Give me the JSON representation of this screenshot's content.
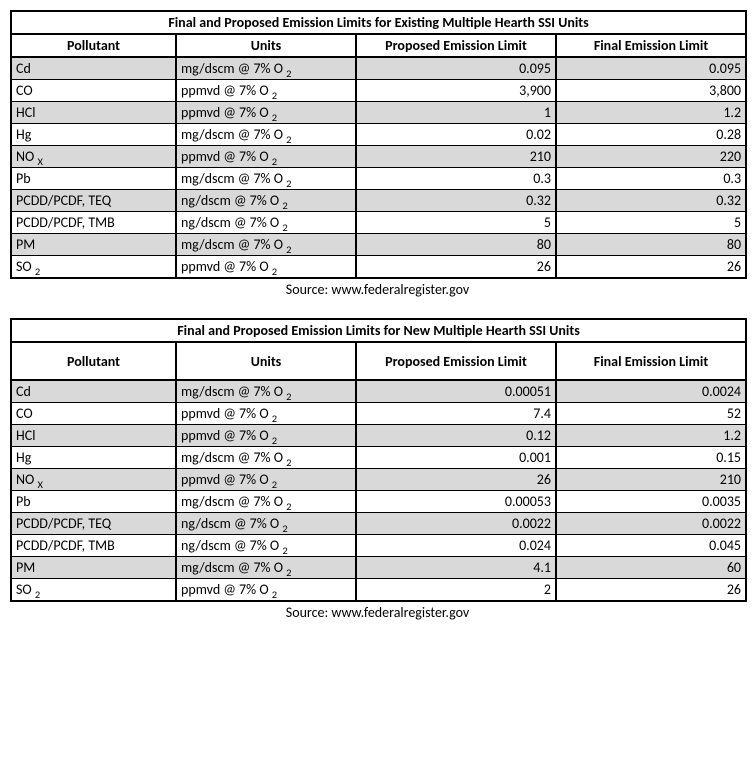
{
  "tables": [
    {
      "title": "Final and Proposed Emission Limits for Existing Multiple Hearth SSI Units",
      "headers": [
        "Pollutant",
        "Units",
        "Proposed Emission Limit",
        "Final Emission Limit"
      ],
      "rows": [
        {
          "pollutant": "Cd",
          "pollutant_sub": "",
          "units_prefix": "mg/dscm @ 7% O",
          "units_sub": "2",
          "proposed": "0.095",
          "final": "0.095",
          "shaded": true
        },
        {
          "pollutant": "CO",
          "pollutant_sub": "",
          "units_prefix": "ppmvd @ 7% O",
          "units_sub": "2",
          "proposed": "3,900",
          "final": "3,800",
          "shaded": false
        },
        {
          "pollutant": "HCl",
          "pollutant_sub": "",
          "units_prefix": "ppmvd @ 7% O",
          "units_sub": "2",
          "proposed": "1",
          "final": "1.2",
          "shaded": true
        },
        {
          "pollutant": "Hg",
          "pollutant_sub": "",
          "units_prefix": "mg/dscm @ 7% O",
          "units_sub": "2",
          "proposed": "0.02",
          "final": "0.28",
          "shaded": false
        },
        {
          "pollutant": "NO",
          "pollutant_sub": "X",
          "units_prefix": "ppmvd @ 7% O",
          "units_sub": "2",
          "proposed": "210",
          "final": "220",
          "shaded": true
        },
        {
          "pollutant": "Pb",
          "pollutant_sub": "",
          "units_prefix": "mg/dscm @ 7% O",
          "units_sub": "2",
          "proposed": "0.3",
          "final": "0.3",
          "shaded": false
        },
        {
          "pollutant": "PCDD/PCDF, TEQ",
          "pollutant_sub": "",
          "units_prefix": "ng/dscm @ 7% O",
          "units_sub": "2",
          "proposed": "0.32",
          "final": "0.32",
          "shaded": true
        },
        {
          "pollutant": "PCDD/PCDF, TMB",
          "pollutant_sub": "",
          "units_prefix": "ng/dscm @ 7% O",
          "units_sub": "2",
          "proposed": "5",
          "final": "5",
          "shaded": false
        },
        {
          "pollutant": "PM",
          "pollutant_sub": "",
          "units_prefix": "mg/dscm @ 7% O",
          "units_sub": "2",
          "proposed": "80",
          "final": "80",
          "shaded": true
        },
        {
          "pollutant": "SO",
          "pollutant_sub": "2",
          "units_prefix": "ppmvd @ 7% O",
          "units_sub": "2",
          "proposed": "26",
          "final": "26",
          "shaded": false
        }
      ],
      "source": "Source: www.federalregister.gov"
    },
    {
      "title": "Final and Proposed Emission Limits for New Multiple Hearth SSI Units",
      "headers": [
        "Pollutant",
        "Units",
        "Proposed Emission Limit",
        "Final Emission Limit"
      ],
      "rows": [
        {
          "pollutant": "Cd",
          "pollutant_sub": "",
          "units_prefix": "mg/dscm @ 7% O",
          "units_sub": "2",
          "proposed": "0.00051",
          "final": "0.0024",
          "shaded": true
        },
        {
          "pollutant": "CO",
          "pollutant_sub": "",
          "units_prefix": "ppmvd @ 7% O",
          "units_sub": "2",
          "proposed": "7.4",
          "final": "52",
          "shaded": false
        },
        {
          "pollutant": "HCl",
          "pollutant_sub": "",
          "units_prefix": "ppmvd @ 7% O",
          "units_sub": "2",
          "proposed": "0.12",
          "final": "1.2",
          "shaded": true
        },
        {
          "pollutant": "Hg",
          "pollutant_sub": "",
          "units_prefix": "mg/dscm @ 7% O",
          "units_sub": "2",
          "proposed": "0.001",
          "final": "0.15",
          "shaded": false
        },
        {
          "pollutant": "NO",
          "pollutant_sub": "X",
          "units_prefix": "ppmvd @ 7% O",
          "units_sub": "2",
          "proposed": "26",
          "final": "210",
          "shaded": true
        },
        {
          "pollutant": "Pb",
          "pollutant_sub": "",
          "units_prefix": "mg/dscm @ 7% O",
          "units_sub": "2",
          "proposed": "0.00053",
          "final": "0.0035",
          "shaded": false
        },
        {
          "pollutant": "PCDD/PCDF, TEQ",
          "pollutant_sub": "",
          "units_prefix": "ng/dscm @ 7% O",
          "units_sub": "2",
          "proposed": "0.0022",
          "final": "0.0022",
          "shaded": true
        },
        {
          "pollutant": "PCDD/PCDF, TMB",
          "pollutant_sub": "",
          "units_prefix": "ng/dscm @ 7% O",
          "units_sub": "2",
          "proposed": "0.024",
          "final": "0.045",
          "shaded": false
        },
        {
          "pollutant": "PM",
          "pollutant_sub": "",
          "units_prefix": "mg/dscm @ 7% O",
          "units_sub": "2",
          "proposed": "4.1",
          "final": "60",
          "shaded": true
        },
        {
          "pollutant": "SO",
          "pollutant_sub": "2",
          "units_prefix": "ppmvd @ 7% O",
          "units_sub": "2",
          "proposed": "2",
          "final": "26",
          "shaded": false
        }
      ],
      "source": "Source: www.federalregister.gov"
    }
  ]
}
